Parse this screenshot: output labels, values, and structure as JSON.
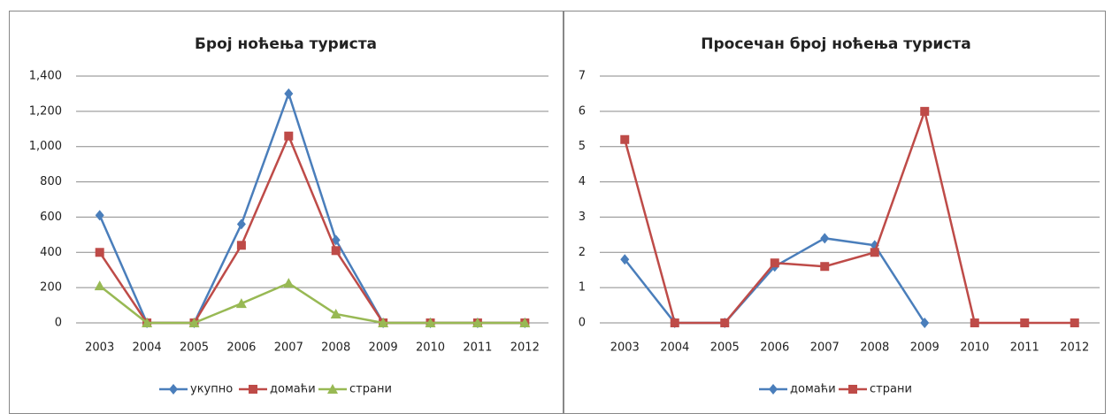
{
  "chart_data": [
    {
      "type": "line",
      "title": "Број ноћења туриста",
      "categories": [
        "2003",
        "2004",
        "2005",
        "2006",
        "2007",
        "2008",
        "2009",
        "2010",
        "2011",
        "2012"
      ],
      "ylim": [
        0,
        1400
      ],
      "yticks": [
        0,
        200,
        400,
        600,
        800,
        {
          "value": 1000,
          "label": "1,000"
        },
        {
          "value": 1200,
          "label": "1,200"
        },
        {
          "value": 1400,
          "label": "1,400"
        }
      ],
      "grid": true,
      "legend": "bottom",
      "series": [
        {
          "name": "укупно",
          "color": "#4a7ebb",
          "marker": "diamond",
          "values": [
            610,
            0,
            0,
            560,
            1300,
            470,
            0,
            0,
            0,
            0
          ]
        },
        {
          "name": "домаћи",
          "color": "#be4b48",
          "marker": "square",
          "values": [
            400,
            0,
            0,
            440,
            1060,
            410,
            0,
            0,
            0,
            0
          ]
        },
        {
          "name": "страни",
          "color": "#98b954",
          "marker": "triangle",
          "values": [
            210,
            0,
            0,
            110,
            225,
            50,
            0,
            0,
            0,
            0
          ]
        }
      ]
    },
    {
      "type": "line",
      "title": "Просечан број ноћења туриста",
      "categories": [
        "2003",
        "2004",
        "2005",
        "2006",
        "2007",
        "2008",
        "2009",
        "2010",
        "2011",
        "2012"
      ],
      "ylim": [
        0,
        7
      ],
      "yticks": [
        0,
        1,
        2,
        3,
        4,
        5,
        6,
        7
      ],
      "grid": true,
      "legend": "bottom",
      "series": [
        {
          "name": "домаћи",
          "color": "#4a7ebb",
          "marker": "diamond",
          "values": [
            1.8,
            0,
            0,
            1.6,
            2.4,
            2.2,
            0,
            null,
            null,
            null
          ]
        },
        {
          "name": "страни",
          "color": "#be4b48",
          "marker": "square",
          "values": [
            5.2,
            0,
            0,
            1.7,
            1.6,
            2.0,
            6.0,
            0,
            0,
            0
          ]
        }
      ]
    }
  ]
}
